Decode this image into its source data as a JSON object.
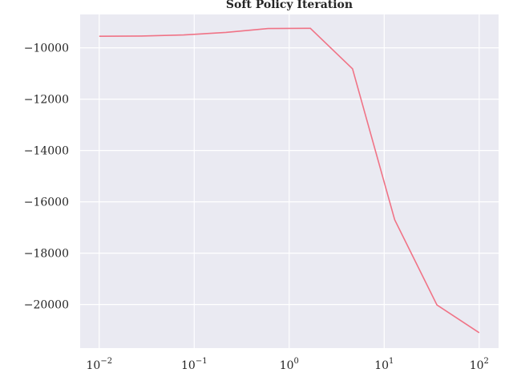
{
  "chart_data": {
    "type": "line",
    "title": "Soft Policy Iteration",
    "xlabel": "",
    "ylabel": "",
    "xscale": "log",
    "xlim": [
      0.0063,
      160
    ],
    "ylim": [
      -21700,
      -8700
    ],
    "grid": true,
    "legend": "none",
    "x_ticks": [
      {
        "value": 0.01,
        "base": "10",
        "exp": "−2"
      },
      {
        "value": 0.1,
        "base": "10",
        "exp": "−1"
      },
      {
        "value": 1,
        "base": "10",
        "exp": "0"
      },
      {
        "value": 10,
        "base": "10",
        "exp": "1"
      },
      {
        "value": 100,
        "base": "10",
        "exp": "2"
      }
    ],
    "y_ticks": [
      {
        "value": -10000,
        "label": "−10000"
      },
      {
        "value": -12000,
        "label": "−12000"
      },
      {
        "value": -14000,
        "label": "−14000"
      },
      {
        "value": -16000,
        "label": "−16000"
      },
      {
        "value": -18000,
        "label": "−18000"
      },
      {
        "value": -20000,
        "label": "−20000"
      }
    ],
    "series": [
      {
        "color": "#f07386",
        "x": [
          0.01,
          0.0278,
          0.0774,
          0.215,
          0.599,
          1.67,
          4.64,
          12.9,
          35.9,
          100
        ],
        "y": [
          -9550,
          -9540,
          -9500,
          -9400,
          -9250,
          -9240,
          -10820,
          -16700,
          -20020,
          -21100
        ]
      }
    ],
    "colors": {
      "plot_background": "#eaeaf2",
      "grid": "#ffffff",
      "text": "#262626"
    }
  }
}
